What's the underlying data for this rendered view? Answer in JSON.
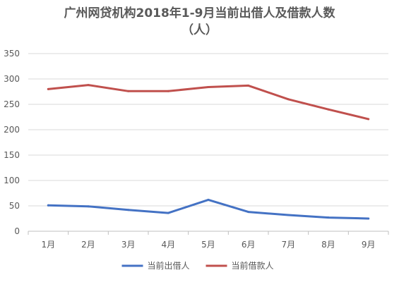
{
  "chart_data": {
    "type": "line",
    "title_line1": "广州网贷机构2018年1-9月当前出借人及借款人数",
    "title_line2": "（人）",
    "categories": [
      "1月",
      "2月",
      "3月",
      "4月",
      "5月",
      "6月",
      "7月",
      "8月",
      "9月"
    ],
    "series": [
      {
        "name": "当前出借人",
        "color": "#4472C4",
        "values": [
          51,
          49,
          42,
          36,
          62,
          38,
          32,
          27,
          25
        ]
      },
      {
        "name": "当前借款人",
        "color": "#C0504D",
        "values": [
          280,
          288,
          276,
          276,
          284,
          287,
          260,
          240,
          221
        ]
      }
    ],
    "ylim": [
      0,
      350
    ],
    "yticks": [
      0,
      50,
      100,
      150,
      200,
      250,
      300,
      350
    ],
    "grid": true,
    "legend_position": "bottom"
  }
}
